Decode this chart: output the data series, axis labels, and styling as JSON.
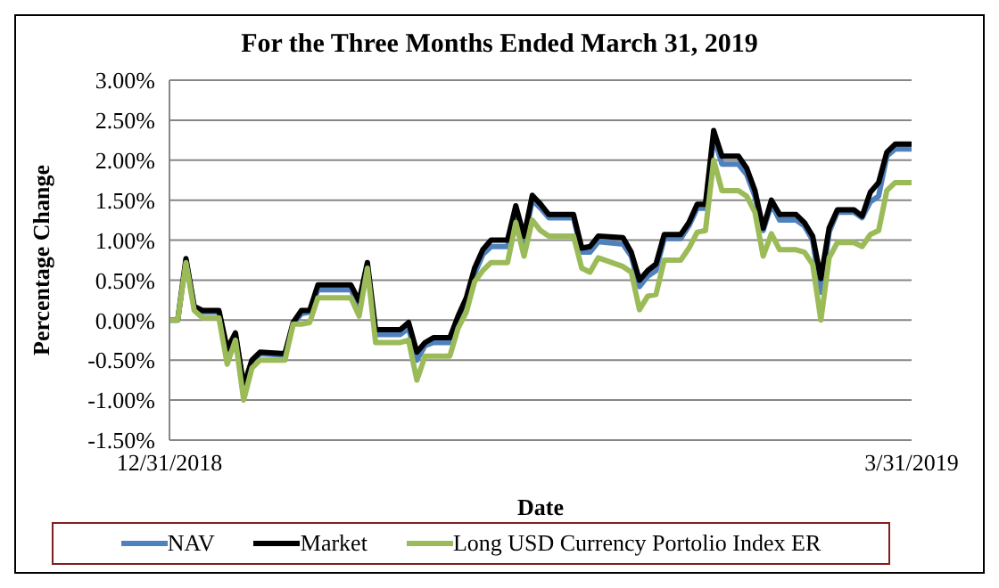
{
  "chart_data": {
    "type": "line",
    "title": "For the Three Months Ended March 31, 2019",
    "xlabel": "Date",
    "ylabel": "Percentage Change",
    "x": [
      "2018-12-31",
      "2019-01-01",
      "2019-01-02",
      "2019-01-03",
      "2019-01-04",
      "2019-01-06",
      "2019-01-07",
      "2019-01-08",
      "2019-01-09",
      "2019-01-10",
      "2019-01-11",
      "2019-01-14",
      "2019-01-15",
      "2019-01-16",
      "2019-01-17",
      "2019-01-18",
      "2019-01-22",
      "2019-01-23",
      "2019-01-24",
      "2019-01-25",
      "2019-01-28",
      "2019-01-29",
      "2019-01-30",
      "2019-01-31",
      "2019-02-01",
      "2019-02-03",
      "2019-02-04",
      "2019-02-05",
      "2019-02-06",
      "2019-02-07",
      "2019-02-08",
      "2019-02-10",
      "2019-02-11",
      "2019-02-12",
      "2019-02-13",
      "2019-02-14",
      "2019-02-15",
      "2019-02-18",
      "2019-02-19",
      "2019-02-20",
      "2019-02-21",
      "2019-02-24",
      "2019-02-25",
      "2019-02-26",
      "2019-02-27",
      "2019-02-28",
      "2019-03-01",
      "2019-03-03",
      "2019-03-04",
      "2019-03-05",
      "2019-03-06",
      "2019-03-07",
      "2019-03-08",
      "2019-03-10",
      "2019-03-11",
      "2019-03-12",
      "2019-03-13",
      "2019-03-14",
      "2019-03-15",
      "2019-03-17",
      "2019-03-18",
      "2019-03-19",
      "2019-03-20",
      "2019-03-21",
      "2019-03-22",
      "2019-03-24",
      "2019-03-25",
      "2019-03-26",
      "2019-03-27",
      "2019-03-28",
      "2019-03-29",
      "2019-03-31"
    ],
    "series": [
      {
        "name": "NAV",
        "color": "#4f81bd",
        "values": [
          null,
          null,
          0.75,
          0.15,
          0.1,
          0.1,
          -0.38,
          -0.18,
          -0.85,
          -0.52,
          -0.42,
          -0.44,
          -0.05,
          0.08,
          0.1,
          0.38,
          0.38,
          0.18,
          0.68,
          -0.18,
          -0.18,
          -0.1,
          -0.5,
          -0.32,
          -0.28,
          -0.28,
          0.0,
          0.22,
          0.58,
          0.82,
          0.92,
          0.92,
          1.35,
          0.98,
          1.5,
          1.4,
          1.28,
          1.28,
          0.85,
          0.85,
          0.98,
          0.95,
          0.8,
          0.42,
          0.55,
          0.62,
          1.02,
          1.02,
          1.18,
          1.4,
          1.4,
          2.3,
          1.95,
          1.95,
          1.82,
          1.55,
          1.12,
          1.45,
          1.25,
          1.25,
          1.18,
          1.0,
          0.35,
          1.1,
          1.35,
          1.35,
          1.28,
          1.48,
          1.55,
          2.05,
          2.14,
          2.14
        ]
      },
      {
        "name": "Market",
        "color": "#000000",
        "values": [
          0,
          0,
          0.77,
          0.17,
          0.12,
          0.12,
          -0.36,
          -0.16,
          -0.82,
          -0.5,
          -0.4,
          -0.42,
          -0.03,
          0.12,
          0.12,
          0.44,
          0.44,
          0.24,
          0.72,
          -0.12,
          -0.12,
          -0.03,
          -0.4,
          -0.28,
          -0.22,
          -0.22,
          0.05,
          0.28,
          0.65,
          0.88,
          1.0,
          1.0,
          1.43,
          1.05,
          1.56,
          1.45,
          1.32,
          1.32,
          0.9,
          0.92,
          1.05,
          1.03,
          0.85,
          0.5,
          0.62,
          0.7,
          1.07,
          1.07,
          1.22,
          1.45,
          1.45,
          2.37,
          2.05,
          2.05,
          1.9,
          1.62,
          1.15,
          1.5,
          1.32,
          1.32,
          1.22,
          1.05,
          0.52,
          1.15,
          1.38,
          1.38,
          1.3,
          1.6,
          1.72,
          2.1,
          2.2,
          2.2
        ]
      },
      {
        "name": "Long USD Currency Portolio Index ER",
        "color": "#9bbb59",
        "values": [
          0,
          0,
          0.72,
          0.12,
          0.03,
          0.03,
          -0.55,
          -0.25,
          -1.0,
          -0.6,
          -0.5,
          -0.5,
          -0.05,
          -0.05,
          -0.03,
          0.28,
          0.28,
          0.05,
          0.65,
          -0.28,
          -0.28,
          -0.25,
          -0.75,
          -0.45,
          -0.45,
          -0.45,
          -0.1,
          0.1,
          0.48,
          0.62,
          0.72,
          0.72,
          1.22,
          0.8,
          1.25,
          1.12,
          1.05,
          1.05,
          0.65,
          0.6,
          0.78,
          0.67,
          0.6,
          0.13,
          0.3,
          0.32,
          0.75,
          0.75,
          0.9,
          1.1,
          1.12,
          2.0,
          1.62,
          1.62,
          1.55,
          1.35,
          0.8,
          1.08,
          0.88,
          0.88,
          0.85,
          0.7,
          0.0,
          0.78,
          0.97,
          0.97,
          0.92,
          1.07,
          1.12,
          1.62,
          1.72,
          1.72
        ]
      }
    ],
    "xlim": [
      "2018-12-31",
      "2019-03-31"
    ],
    "xticks": [
      {
        "value": "2018-12-31",
        "label": "12/31/2018"
      },
      {
        "value": "2019-03-31",
        "label": "3/31/2019"
      }
    ],
    "ylim": [
      -1.5,
      3
    ],
    "yticks": [
      {
        "value": -1.5,
        "label": "-1.50%"
      },
      {
        "value": -1,
        "label": "-1.00%"
      },
      {
        "value": -0.5,
        "label": "-0.50%"
      },
      {
        "value": 0,
        "label": "0.00%"
      },
      {
        "value": 0.5,
        "label": "0.50%"
      },
      {
        "value": 1,
        "label": "1.00%"
      },
      {
        "value": 1.5,
        "label": "1.50%"
      },
      {
        "value": 2,
        "label": "2.00%"
      },
      {
        "value": 2.5,
        "label": "2.50%"
      },
      {
        "value": 3,
        "label": "3.00%"
      }
    ],
    "grid": "y",
    "legend": "bottom",
    "marker": "none",
    "line_style": "solid"
  }
}
